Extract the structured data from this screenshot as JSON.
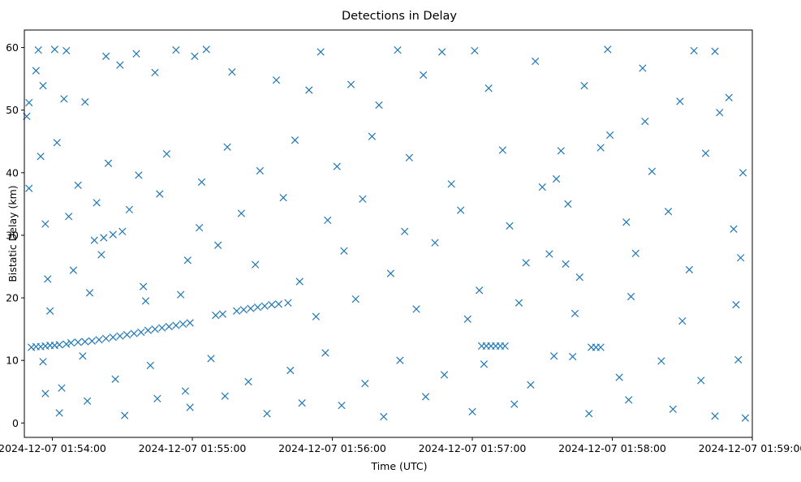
{
  "chart_data": {
    "type": "scatter",
    "title": "Detections in Delay",
    "xlabel": "Time (UTC)",
    "ylabel": "Bistatic Delay (km)",
    "marker": "x",
    "color": "#1f77b4",
    "grid": false,
    "xlim": [
      "2024-12-07 01:53:48",
      "2024-12-07 01:59:00"
    ],
    "ylim": [
      -2.3,
      62.8
    ],
    "xticks": [
      {
        "t": "2024-12-07 01:54:00",
        "label": "2024-12-07 01:54:00"
      },
      {
        "t": "2024-12-07 01:55:00",
        "label": "2024-12-07 01:55:00"
      },
      {
        "t": "2024-12-07 01:56:00",
        "label": "2024-12-07 01:56:00"
      },
      {
        "t": "2024-12-07 01:57:00",
        "label": "2024-12-07 01:57:00"
      },
      {
        "t": "2024-12-07 01:58:00",
        "label": "2024-12-07 01:58:00"
      },
      {
        "t": "2024-12-07 01:59:00",
        "label": "2024-12-07 01:59:00"
      }
    ],
    "yticks": [
      0,
      10,
      20,
      30,
      40,
      50,
      60
    ],
    "series": [
      {
        "points": [
          {
            "t": "2024-12-07 01:53:51",
            "y": 12.1
          },
          {
            "t": "2024-12-07 01:53:53",
            "y": 12.2
          },
          {
            "t": "2024-12-07 01:53:55",
            "y": 12.2
          },
          {
            "t": "2024-12-07 01:53:57",
            "y": 12.3
          },
          {
            "t": "2024-12-07 01:53:59",
            "y": 12.4
          },
          {
            "t": "2024-12-07 01:54:01",
            "y": 12.4
          },
          {
            "t": "2024-12-07 01:54:03",
            "y": 12.5
          },
          {
            "t": "2024-12-07 01:54:06",
            "y": 12.6
          },
          {
            "t": "2024-12-07 01:54:08",
            "y": 12.8
          },
          {
            "t": "2024-12-07 01:54:11",
            "y": 12.9
          },
          {
            "t": "2024-12-07 01:54:14",
            "y": 13.0
          },
          {
            "t": "2024-12-07 01:54:17",
            "y": 13.1
          },
          {
            "t": "2024-12-07 01:54:20",
            "y": 13.3
          },
          {
            "t": "2024-12-07 01:54:23",
            "y": 13.5
          },
          {
            "t": "2024-12-07 01:54:26",
            "y": 13.7
          },
          {
            "t": "2024-12-07 01:54:29",
            "y": 13.9
          },
          {
            "t": "2024-12-07 01:54:32",
            "y": 14.1
          },
          {
            "t": "2024-12-07 01:54:35",
            "y": 14.3
          },
          {
            "t": "2024-12-07 01:54:38",
            "y": 14.5
          },
          {
            "t": "2024-12-07 01:54:41",
            "y": 14.8
          },
          {
            "t": "2024-12-07 01:54:44",
            "y": 15.0
          },
          {
            "t": "2024-12-07 01:54:47",
            "y": 15.2
          },
          {
            "t": "2024-12-07 01:54:50",
            "y": 15.4
          },
          {
            "t": "2024-12-07 01:54:53",
            "y": 15.6
          },
          {
            "t": "2024-12-07 01:54:56",
            "y": 15.8
          },
          {
            "t": "2024-12-07 01:54:59",
            "y": 16.0
          },
          {
            "t": "2024-12-07 01:55:10",
            "y": 17.2
          },
          {
            "t": "2024-12-07 01:55:13",
            "y": 17.4
          },
          {
            "t": "2024-12-07 01:55:19",
            "y": 17.9
          },
          {
            "t": "2024-12-07 01:55:22",
            "y": 18.1
          },
          {
            "t": "2024-12-07 01:55:25",
            "y": 18.3
          },
          {
            "t": "2024-12-07 01:55:28",
            "y": 18.5
          },
          {
            "t": "2024-12-07 01:55:31",
            "y": 18.7
          },
          {
            "t": "2024-12-07 01:55:34",
            "y": 18.9
          },
          {
            "t": "2024-12-07 01:55:37",
            "y": 19.0
          },
          {
            "t": "2024-12-07 01:55:41",
            "y": 19.2
          },
          {
            "t": "2024-12-07 01:54:18",
            "y": 29.2
          },
          {
            "t": "2024-12-07 01:54:22",
            "y": 29.6
          },
          {
            "t": "2024-12-07 01:54:26",
            "y": 30.1
          },
          {
            "t": "2024-12-07 01:54:30",
            "y": 30.6
          },
          {
            "t": "2024-12-07 01:57:04",
            "y": 12.3
          },
          {
            "t": "2024-12-07 01:57:06",
            "y": 12.3
          },
          {
            "t": "2024-12-07 01:57:08",
            "y": 12.3
          },
          {
            "t": "2024-12-07 01:57:10",
            "y": 12.3
          },
          {
            "t": "2024-12-07 01:57:12",
            "y": 12.3
          },
          {
            "t": "2024-12-07 01:57:14",
            "y": 12.3
          },
          {
            "t": "2024-12-07 01:57:51",
            "y": 12.1
          },
          {
            "t": "2024-12-07 01:57:53",
            "y": 12.1
          },
          {
            "t": "2024-12-07 01:57:55",
            "y": 12.1
          },
          {
            "t": "2024-12-07 01:53:54",
            "y": 59.6
          },
          {
            "t": "2024-12-07 01:54:01",
            "y": 59.7
          },
          {
            "t": "2024-12-07 01:54:06",
            "y": 59.5
          },
          {
            "t": "2024-12-07 01:54:23",
            "y": 58.6
          },
          {
            "t": "2024-12-07 01:54:36",
            "y": 59.0
          },
          {
            "t": "2024-12-07 01:54:53",
            "y": 59.6
          },
          {
            "t": "2024-12-07 01:55:06",
            "y": 59.7
          },
          {
            "t": "2024-12-07 01:55:55",
            "y": 59.3
          },
          {
            "t": "2024-12-07 01:56:28",
            "y": 59.6
          },
          {
            "t": "2024-12-07 01:56:47",
            "y": 59.3
          },
          {
            "t": "2024-12-07 01:57:01",
            "y": 59.5
          },
          {
            "t": "2024-12-07 01:57:58",
            "y": 59.7
          },
          {
            "t": "2024-12-07 01:58:35",
            "y": 59.5
          },
          {
            "t": "2024-12-07 01:58:44",
            "y": 59.4
          },
          {
            "t": "2024-12-07 01:53:49",
            "y": 49.0
          },
          {
            "t": "2024-12-07 01:53:50",
            "y": 51.2
          },
          {
            "t": "2024-12-07 01:53:53",
            "y": 56.3
          },
          {
            "t": "2024-12-07 01:53:56",
            "y": 53.9
          },
          {
            "t": "2024-12-07 01:54:05",
            "y": 51.8
          },
          {
            "t": "2024-12-07 01:54:14",
            "y": 51.3
          },
          {
            "t": "2024-12-07 01:54:29",
            "y": 57.2
          },
          {
            "t": "2024-12-07 01:54:44",
            "y": 56.0
          },
          {
            "t": "2024-12-07 01:55:01",
            "y": 58.6
          },
          {
            "t": "2024-12-07 01:55:17",
            "y": 56.1
          },
          {
            "t": "2024-12-07 01:55:36",
            "y": 54.8
          },
          {
            "t": "2024-12-07 01:55:50",
            "y": 53.2
          },
          {
            "t": "2024-12-07 01:56:08",
            "y": 54.1
          },
          {
            "t": "2024-12-07 01:56:20",
            "y": 50.8
          },
          {
            "t": "2024-12-07 01:56:39",
            "y": 55.6
          },
          {
            "t": "2024-12-07 01:57:07",
            "y": 53.5
          },
          {
            "t": "2024-12-07 01:57:27",
            "y": 57.8
          },
          {
            "t": "2024-12-07 01:57:48",
            "y": 53.9
          },
          {
            "t": "2024-12-07 01:58:13",
            "y": 56.7
          },
          {
            "t": "2024-12-07 01:58:29",
            "y": 51.4
          },
          {
            "t": "2024-12-07 01:58:50",
            "y": 52.0
          },
          {
            "t": "2024-12-07 01:53:50",
            "y": 37.5
          },
          {
            "t": "2024-12-07 01:53:55",
            "y": 42.6
          },
          {
            "t": "2024-12-07 01:54:02",
            "y": 44.8
          },
          {
            "t": "2024-12-07 01:54:11",
            "y": 38.0
          },
          {
            "t": "2024-12-07 01:54:24",
            "y": 41.5
          },
          {
            "t": "2024-12-07 01:54:37",
            "y": 39.6
          },
          {
            "t": "2024-12-07 01:54:49",
            "y": 43.0
          },
          {
            "t": "2024-12-07 01:55:04",
            "y": 38.5
          },
          {
            "t": "2024-12-07 01:55:15",
            "y": 44.1
          },
          {
            "t": "2024-12-07 01:55:29",
            "y": 40.3
          },
          {
            "t": "2024-12-07 01:55:44",
            "y": 45.2
          },
          {
            "t": "2024-12-07 01:56:02",
            "y": 41.0
          },
          {
            "t": "2024-12-07 01:56:17",
            "y": 45.8
          },
          {
            "t": "2024-12-07 01:56:33",
            "y": 42.4
          },
          {
            "t": "2024-12-07 01:56:51",
            "y": 38.2
          },
          {
            "t": "2024-12-07 01:57:13",
            "y": 43.6
          },
          {
            "t": "2024-12-07 01:57:36",
            "y": 39.0
          },
          {
            "t": "2024-12-07 01:57:55",
            "y": 44.0
          },
          {
            "t": "2024-12-07 01:58:17",
            "y": 40.2
          },
          {
            "t": "2024-12-07 01:58:40",
            "y": 43.1
          },
          {
            "t": "2024-12-07 01:58:56",
            "y": 40.0
          },
          {
            "t": "2024-12-07 01:53:57",
            "y": 31.8
          },
          {
            "t": "2024-12-07 01:54:07",
            "y": 33.0
          },
          {
            "t": "2024-12-07 01:54:19",
            "y": 35.2
          },
          {
            "t": "2024-12-07 01:54:33",
            "y": 34.1
          },
          {
            "t": "2024-12-07 01:54:46",
            "y": 36.6
          },
          {
            "t": "2024-12-07 01:55:03",
            "y": 31.2
          },
          {
            "t": "2024-12-07 01:55:21",
            "y": 33.5
          },
          {
            "t": "2024-12-07 01:55:39",
            "y": 36.0
          },
          {
            "t": "2024-12-07 01:55:58",
            "y": 32.4
          },
          {
            "t": "2024-12-07 01:56:13",
            "y": 35.8
          },
          {
            "t": "2024-12-07 01:56:31",
            "y": 30.6
          },
          {
            "t": "2024-12-07 01:56:55",
            "y": 34.0
          },
          {
            "t": "2024-12-07 01:57:16",
            "y": 31.5
          },
          {
            "t": "2024-12-07 01:57:41",
            "y": 35.0
          },
          {
            "t": "2024-12-07 01:58:06",
            "y": 32.1
          },
          {
            "t": "2024-12-07 01:58:24",
            "y": 33.8
          },
          {
            "t": "2024-12-07 01:58:52",
            "y": 31.0
          },
          {
            "t": "2024-12-07 01:53:58",
            "y": 23.0
          },
          {
            "t": "2024-12-07 01:54:09",
            "y": 24.4
          },
          {
            "t": "2024-12-07 01:54:21",
            "y": 26.9
          },
          {
            "t": "2024-12-07 01:54:39",
            "y": 21.8
          },
          {
            "t": "2024-12-07 01:54:58",
            "y": 26.0
          },
          {
            "t": "2024-12-07 01:55:11",
            "y": 28.4
          },
          {
            "t": "2024-12-07 01:55:27",
            "y": 25.3
          },
          {
            "t": "2024-12-07 01:55:46",
            "y": 22.6
          },
          {
            "t": "2024-12-07 01:56:05",
            "y": 27.5
          },
          {
            "t": "2024-12-07 01:56:25",
            "y": 23.9
          },
          {
            "t": "2024-12-07 01:56:44",
            "y": 28.8
          },
          {
            "t": "2024-12-07 01:57:03",
            "y": 21.2
          },
          {
            "t": "2024-12-07 01:57:23",
            "y": 25.6
          },
          {
            "t": "2024-12-07 01:57:46",
            "y": 23.3
          },
          {
            "t": "2024-12-07 01:58:10",
            "y": 27.1
          },
          {
            "t": "2024-12-07 01:58:33",
            "y": 24.5
          },
          {
            "t": "2024-12-07 01:58:55",
            "y": 26.4
          },
          {
            "t": "2024-12-07 01:53:59",
            "y": 17.9
          },
          {
            "t": "2024-12-07 01:54:16",
            "y": 20.8
          },
          {
            "t": "2024-12-07 01:54:40",
            "y": 19.5
          },
          {
            "t": "2024-12-07 01:54:55",
            "y": 20.5
          },
          {
            "t": "2024-12-07 01:55:53",
            "y": 17.0
          },
          {
            "t": "2024-12-07 01:56:10",
            "y": 19.8
          },
          {
            "t": "2024-12-07 01:56:36",
            "y": 18.2
          },
          {
            "t": "2024-12-07 01:56:58",
            "y": 16.6
          },
          {
            "t": "2024-12-07 01:57:20",
            "y": 19.2
          },
          {
            "t": "2024-12-07 01:57:44",
            "y": 17.5
          },
          {
            "t": "2024-12-07 01:58:08",
            "y": 20.2
          },
          {
            "t": "2024-12-07 01:58:30",
            "y": 16.3
          },
          {
            "t": "2024-12-07 01:58:53",
            "y": 18.9
          },
          {
            "t": "2024-12-07 01:53:56",
            "y": 9.8
          },
          {
            "t": "2024-12-07 01:54:04",
            "y": 5.6
          },
          {
            "t": "2024-12-07 01:54:13",
            "y": 10.7
          },
          {
            "t": "2024-12-07 01:54:27",
            "y": 7.0
          },
          {
            "t": "2024-12-07 01:54:42",
            "y": 9.2
          },
          {
            "t": "2024-12-07 01:54:57",
            "y": 5.1
          },
          {
            "t": "2024-12-07 01:55:08",
            "y": 10.3
          },
          {
            "t": "2024-12-07 01:55:24",
            "y": 6.6
          },
          {
            "t": "2024-12-07 01:55:42",
            "y": 8.4
          },
          {
            "t": "2024-12-07 01:55:57",
            "y": 11.2
          },
          {
            "t": "2024-12-07 01:56:14",
            "y": 6.3
          },
          {
            "t": "2024-12-07 01:56:29",
            "y": 10.0
          },
          {
            "t": "2024-12-07 01:56:48",
            "y": 7.7
          },
          {
            "t": "2024-12-07 01:57:05",
            "y": 9.4
          },
          {
            "t": "2024-12-07 01:57:25",
            "y": 6.1
          },
          {
            "t": "2024-12-07 01:57:43",
            "y": 10.6
          },
          {
            "t": "2024-12-07 01:58:03",
            "y": 7.3
          },
          {
            "t": "2024-12-07 01:58:21",
            "y": 9.9
          },
          {
            "t": "2024-12-07 01:58:38",
            "y": 6.8
          },
          {
            "t": "2024-12-07 01:58:54",
            "y": 10.1
          },
          {
            "t": "2024-12-07 01:53:57",
            "y": 4.7
          },
          {
            "t": "2024-12-07 01:54:03",
            "y": 1.6
          },
          {
            "t": "2024-12-07 01:54:15",
            "y": 3.5
          },
          {
            "t": "2024-12-07 01:54:31",
            "y": 1.2
          },
          {
            "t": "2024-12-07 01:54:45",
            "y": 3.9
          },
          {
            "t": "2024-12-07 01:54:59",
            "y": 2.5
          },
          {
            "t": "2024-12-07 01:55:14",
            "y": 4.3
          },
          {
            "t": "2024-12-07 01:55:32",
            "y": 1.5
          },
          {
            "t": "2024-12-07 01:55:47",
            "y": 3.2
          },
          {
            "t": "2024-12-07 01:56:04",
            "y": 2.8
          },
          {
            "t": "2024-12-07 01:56:22",
            "y": 1.0
          },
          {
            "t": "2024-12-07 01:56:40",
            "y": 4.2
          },
          {
            "t": "2024-12-07 01:57:00",
            "y": 1.8
          },
          {
            "t": "2024-12-07 01:57:18",
            "y": 3.0
          },
          {
            "t": "2024-12-07 01:57:50",
            "y": 1.5
          },
          {
            "t": "2024-12-07 01:58:07",
            "y": 3.7
          },
          {
            "t": "2024-12-07 01:58:26",
            "y": 2.2
          },
          {
            "t": "2024-12-07 01:58:44",
            "y": 1.1
          },
          {
            "t": "2024-12-07 01:58:57",
            "y": 0.8
          },
          {
            "t": "2024-12-07 01:57:38",
            "y": 43.5
          },
          {
            "t": "2024-12-07 01:57:30",
            "y": 37.7
          },
          {
            "t": "2024-12-07 01:57:33",
            "y": 27.0
          },
          {
            "t": "2024-12-07 01:57:35",
            "y": 10.7
          },
          {
            "t": "2024-12-07 01:57:40",
            "y": 25.4
          },
          {
            "t": "2024-12-07 01:57:59",
            "y": 46.0
          },
          {
            "t": "2024-12-07 01:58:14",
            "y": 48.2
          },
          {
            "t": "2024-12-07 01:58:46",
            "y": 49.6
          }
        ]
      }
    ]
  }
}
